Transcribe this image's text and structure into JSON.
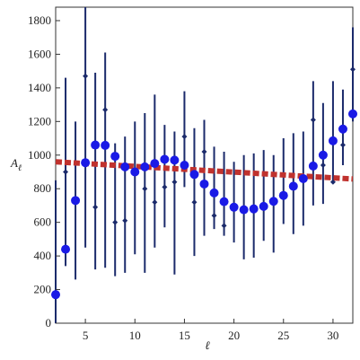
{
  "chart_data": {
    "type": "scatter",
    "xlabel": "ℓ",
    "ylabel_main": "A",
    "ylabel_sub": "ℓ",
    "xlim": [
      2,
      32
    ],
    "ylim": [
      0,
      1880
    ],
    "x_ticks": [
      5,
      10,
      15,
      20,
      25,
      30
    ],
    "y_ticks": [
      0,
      200,
      400,
      600,
      800,
      1000,
      1200,
      1400,
      1600,
      1800
    ],
    "grid": false,
    "colors": {
      "points": "#1a1ae6",
      "error_bars": "#1b2a6b",
      "trend": "#c0322e",
      "axis": "#333333"
    },
    "series": [
      {
        "kind": "points_with_errorbars",
        "x": [
          2,
          3,
          4,
          5,
          6,
          7,
          8,
          9,
          10,
          11,
          12,
          13,
          14,
          15,
          16,
          17,
          18,
          19,
          20,
          21,
          22,
          23,
          24,
          25,
          26,
          27,
          28,
          29,
          30,
          31,
          32
        ],
        "y": [
          170,
          440,
          730,
          955,
          1060,
          1058,
          993,
          930,
          900,
          930,
          950,
          975,
          970,
          940,
          885,
          828,
          775,
          723,
          690,
          675,
          680,
          695,
          725,
          760,
          815,
          860,
          935,
          1000,
          1085,
          1155,
          1245
        ],
        "lower": [
          0,
          340,
          260,
          450,
          320,
          330,
          280,
          300,
          410,
          300,
          450,
          570,
          290,
          810,
          400,
          520,
          560,
          520,
          480,
          380,
          390,
          490,
          420,
          590,
          530,
          580,
          700,
          710,
          850,
          940,
          1200
        ],
        "upper": [
          850,
          1460,
          1200,
          1880,
          1490,
          1610,
          1070,
          1110,
          1200,
          1250,
          1360,
          1180,
          1140,
          1380,
          1160,
          1210,
          1050,
          1020,
          960,
          1000,
          1010,
          1030,
          1000,
          1100,
          1130,
          1140,
          1440,
          1310,
          1440,
          1390,
          1760
        ],
        "center_marks": [
          null,
          900,
          null,
          1470,
          690,
          1270,
          600,
          610,
          null,
          800,
          720,
          810,
          840,
          1110,
          720,
          1020,
          640,
          580,
          null,
          null,
          null,
          null,
          null,
          null,
          null,
          null,
          1210,
          940,
          840,
          1060,
          1510
        ]
      },
      {
        "kind": "trend_line",
        "x": [
          2,
          32
        ],
        "y": [
          960,
          858
        ]
      }
    ]
  }
}
